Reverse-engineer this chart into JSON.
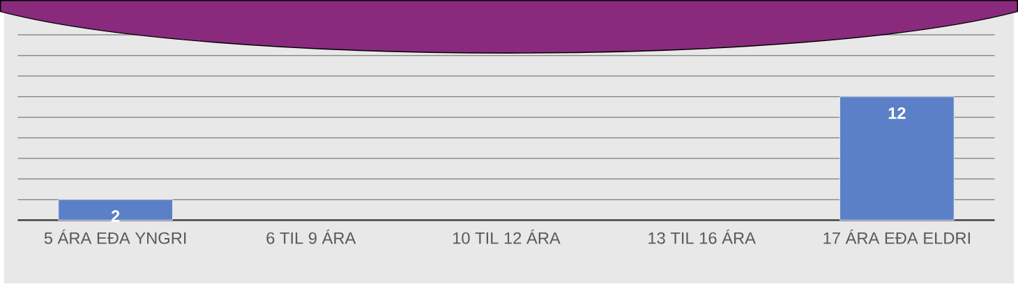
{
  "chart_data": {
    "type": "bar",
    "categories": [
      "5 ÁRA EÐA YNGRI",
      "6 TIL 9 ÁRA",
      "10 TIL 12 ÁRA",
      "13 TIL 16 ÁRA",
      "17 ÁRA EÐA ELDRI"
    ],
    "values": [
      2,
      null,
      null,
      null,
      12
    ],
    "value_labels": [
      "2",
      null,
      null,
      null,
      "12"
    ],
    "color": "#5b80c8",
    "grid": "y",
    "tick_labels": "x"
  }
}
